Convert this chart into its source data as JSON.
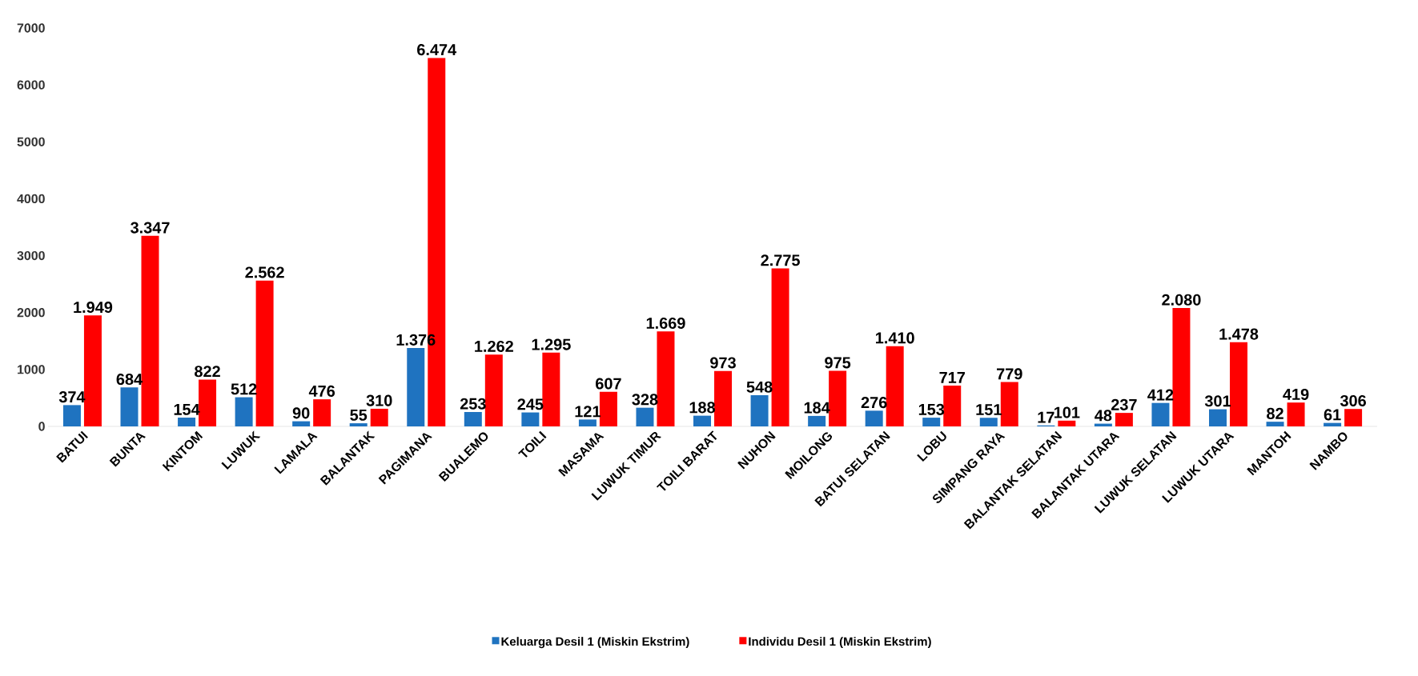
{
  "chart_data": {
    "type": "bar",
    "categories": [
      "BATUI",
      "BUNTA",
      "KINTOM",
      "LUWUK",
      "LAMALA",
      "BALANTAK",
      "PAGIMANA",
      "BUALEMO",
      "TOILI",
      "MASAMA",
      "LUWUK TIMUR",
      "TOILI BARAT",
      "NUHON",
      "MOILONG",
      "BATUI SELATAN",
      "LOBU",
      "SIMPANG RAYA",
      "BALANTAK SELATAN",
      "BALANTAK UTARA",
      "LUWUK SELATAN",
      "LUWUK UTARA",
      "MANTOH",
      "NAMBO"
    ],
    "series": [
      {
        "name": "Keluarga Desil 1 (Miskin Ekstrim)",
        "color": "#1f73c0",
        "values": [
          374,
          684,
          154,
          512,
          90,
          55,
          1376,
          253,
          245,
          121,
          328,
          188,
          548,
          184,
          276,
          153,
          151,
          17,
          48,
          412,
          301,
          82,
          61
        ],
        "value_labels": [
          "374",
          "684",
          "154",
          "512",
          "90",
          "55",
          "1.376",
          "253",
          "245",
          "121",
          "328",
          "188",
          "548",
          "184",
          "276",
          "153",
          "151",
          "17",
          "48",
          "412",
          "301",
          "82",
          "61"
        ]
      },
      {
        "name": "Individu Desil 1 (Miskin Ekstrim)",
        "color": "#ff0000",
        "values": [
          1949,
          3347,
          822,
          2562,
          476,
          310,
          6474,
          1262,
          1295,
          607,
          1669,
          973,
          2775,
          975,
          1410,
          717,
          779,
          101,
          237,
          2080,
          1478,
          419,
          306
        ],
        "value_labels": [
          "1.949",
          "3.347",
          "822",
          "2.562",
          "476",
          "310",
          "6.474",
          "1.262",
          "1.295",
          "607",
          "1.669",
          "973",
          "2.775",
          "975",
          "1.410",
          "717",
          "779",
          "101",
          "237",
          "2.080",
          "1.478",
          "419",
          "306"
        ]
      }
    ],
    "ylim": [
      0,
      7000
    ],
    "yticks": [
      0,
      1000,
      2000,
      3000,
      4000,
      5000,
      6000,
      7000
    ],
    "legend": "bottom"
  }
}
